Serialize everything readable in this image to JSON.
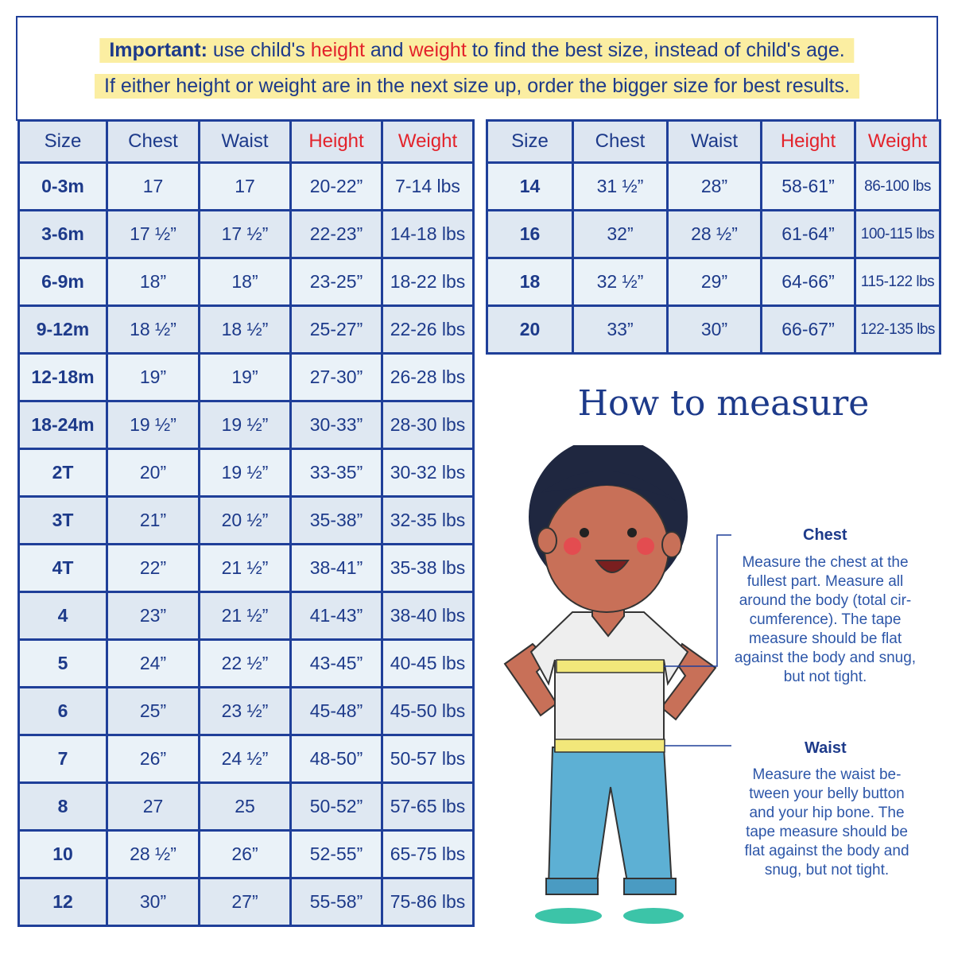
{
  "notice": {
    "line1": {
      "bold": "Important:",
      "t1": " use child's ",
      "height": "height",
      "t2": " and ",
      "weight": "weight",
      "t3": " to find the best size, instead of child's age."
    },
    "line2": "If either height or weight are in the next size up, order the bigger size for best results."
  },
  "headers": [
    "Size",
    "Chest",
    "Waist",
    "Height",
    "Weight"
  ],
  "left_rows": [
    [
      "0-3m",
      "17",
      "17",
      "20-22”",
      "7-14 lbs"
    ],
    [
      "3-6m",
      "17 ½”",
      "17 ½”",
      "22-23”",
      "14-18 lbs"
    ],
    [
      "6-9m",
      "18”",
      "18”",
      "23-25”",
      "18-22 lbs"
    ],
    [
      "9-12m",
      "18 ½”",
      "18 ½”",
      "25-27”",
      "22-26 lbs"
    ],
    [
      "12-18m",
      "19”",
      "19”",
      "27-30”",
      "26-28 lbs"
    ],
    [
      "18-24m",
      "19 ½”",
      "19 ½”",
      "30-33”",
      "28-30 lbs"
    ],
    [
      "2T",
      "20”",
      "19 ½”",
      "33-35”",
      "30-32 lbs"
    ],
    [
      "3T",
      "21”",
      "20 ½”",
      "35-38”",
      "32-35 lbs"
    ],
    [
      "4T",
      "22”",
      "21 ½”",
      "38-41”",
      "35-38 lbs"
    ],
    [
      "4",
      "23”",
      "21 ½”",
      "41-43”",
      "38-40 lbs"
    ],
    [
      "5",
      "24”",
      "22 ½”",
      "43-45”",
      "40-45 lbs"
    ],
    [
      "6",
      "25”",
      "23 ½”",
      "45-48”",
      "45-50 lbs"
    ],
    [
      "7",
      "26”",
      "24 ½”",
      "48-50”",
      "50-57 lbs"
    ],
    [
      "8",
      "27",
      "25",
      "50-52”",
      "57-65 lbs"
    ],
    [
      "10",
      "28 ½”",
      "26”",
      "52-55”",
      "65-75 lbs"
    ],
    [
      "12",
      "30”",
      "27”",
      "55-58”",
      "75-86 lbs"
    ]
  ],
  "right_rows": [
    [
      "14",
      "31 ½”",
      "28”",
      "58-61”",
      "86-100 lbs"
    ],
    [
      "16",
      "32”",
      "28 ½”",
      "61-64”",
      "100-115 lbs"
    ],
    [
      "18",
      "32 ½”",
      "29”",
      "64-66”",
      "115-122 lbs"
    ],
    [
      "20",
      "33”",
      "30”",
      "66-67”",
      "122-135 lbs"
    ]
  ],
  "howto": {
    "title": "How to measure",
    "chest_label": "Chest",
    "chest_desc": "Measure the chest at the fullest part. Measure all around the body (total cir-cumference). The tape measure should be flat against the body and snug, but not tight.",
    "waist_label": "Waist",
    "waist_desc": "Measure the waist be-tween your belly button and your hip bone. The tape measure should be flat against the body and snug, but not tight."
  },
  "colors": {
    "border": "#1f3f99",
    "text": "#1d3a8a",
    "accent_red": "#e3232b",
    "highlight": "#fbeea2"
  }
}
